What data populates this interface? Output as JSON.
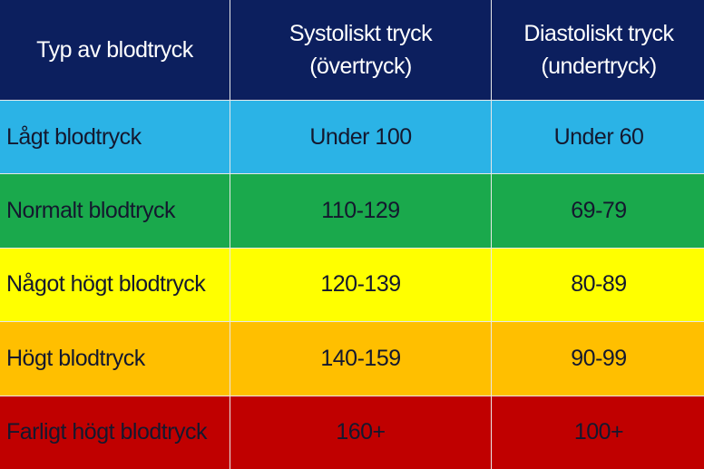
{
  "table": {
    "header": [
      [
        "Typ av blodtryck"
      ],
      [
        "Systoliskt tryck",
        "(övertryck)"
      ],
      [
        "Diastoliskt tryck",
        "(undertryck)"
      ]
    ],
    "rows": [
      [
        "Lågt blodtryck",
        "Under 100",
        "Under 60"
      ],
      [
        "Normalt blodtryck",
        "110-129",
        "69-79"
      ],
      [
        "Något högt blodtryck",
        "120-139",
        "80-89"
      ],
      [
        "Högt blodtryck",
        "140-159",
        "90-99"
      ],
      [
        "Farligt högt blodtryck",
        "160+",
        "100+"
      ]
    ],
    "row_colors": [
      "#2bb3e6",
      "#1aa94c",
      "#ffff00",
      "#ffbf00",
      "#c00000"
    ],
    "header_color": "#0c1f5e"
  }
}
